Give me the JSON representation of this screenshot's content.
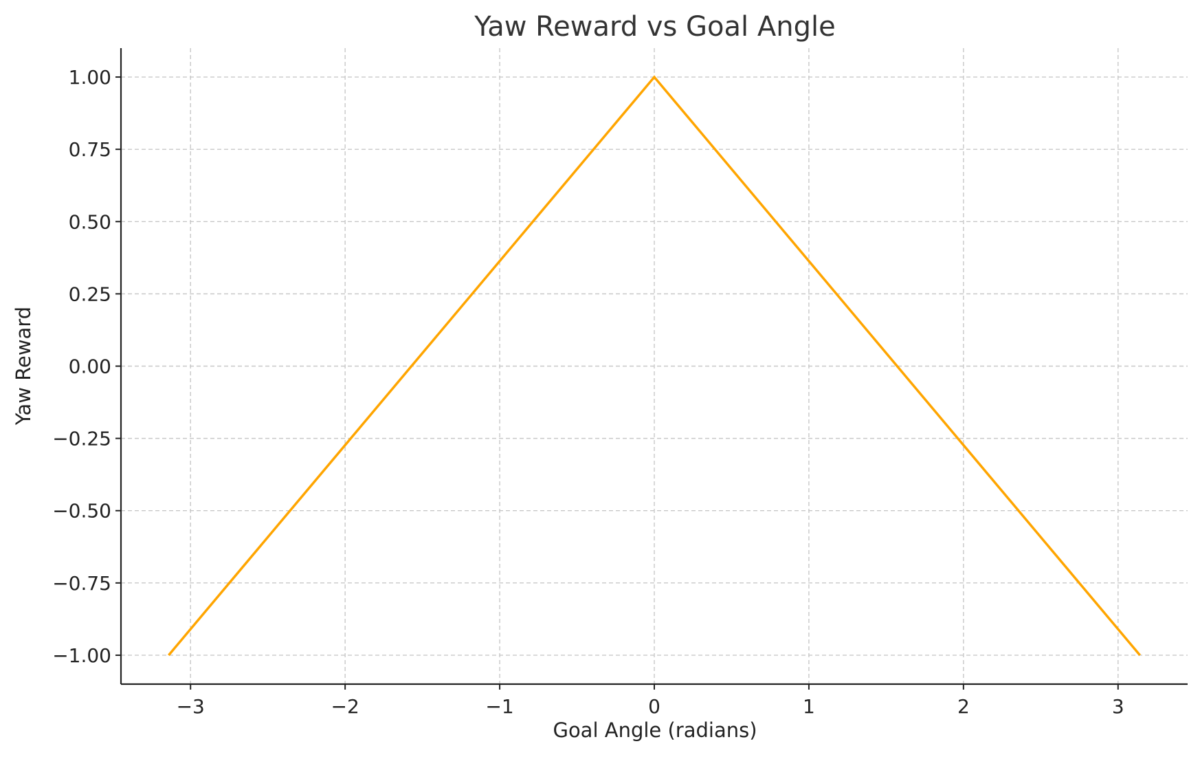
{
  "chart_data": {
    "type": "line",
    "title": "Yaw Reward vs Goal Angle",
    "xlabel": "Goal Angle (radians)",
    "ylabel": "Yaw Reward",
    "xlim": [
      -3.45,
      3.45
    ],
    "ylim": [
      -1.1,
      1.1
    ],
    "grid": true,
    "x_ticks": [
      -3,
      -2,
      -1,
      0,
      1,
      2,
      3
    ],
    "x_tick_labels": [
      "−3",
      "−2",
      "−1",
      "0",
      "1",
      "2",
      "3"
    ],
    "y_ticks": [
      1.0,
      0.75,
      0.5,
      0.25,
      0.0,
      -0.25,
      -0.5,
      -0.75,
      -1.0
    ],
    "y_tick_labels": [
      "1.00",
      "0.75",
      "0.50",
      "0.25",
      "0.00",
      "−0.25",
      "−0.50",
      "−0.75",
      "−1.00"
    ],
    "series": [
      {
        "color": "#FFA500",
        "x": [
          -3.1416,
          0,
          3.1416
        ],
        "y": [
          -1.0,
          1.0,
          -1.0
        ]
      }
    ]
  }
}
